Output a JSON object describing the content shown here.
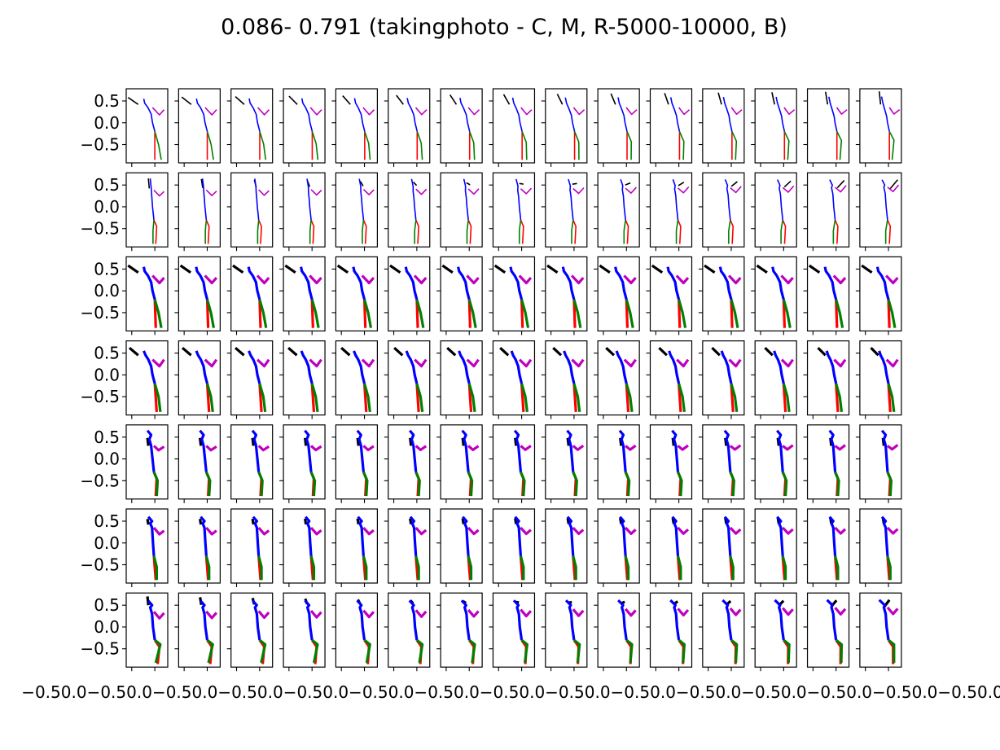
{
  "chart_data": {
    "type": "line",
    "title": "0.086- 0.791 (takingphoto - C, M, R-5000-10000, B)",
    "xlabel": "",
    "ylabel": "",
    "grid": false,
    "legend": "none",
    "layout": {
      "rows": 7,
      "cols": 15
    },
    "xlim": [
      -0.62,
      0.28
    ],
    "ylim": [
      -0.92,
      0.78
    ],
    "y_ticks": [
      0.5,
      0.0,
      -0.5
    ],
    "y_tick_labels": [
      "0.5",
      "0.0",
      "−0.5"
    ],
    "x_ticks": [
      -0.5,
      0.0
    ],
    "x_tick_labels": [
      "−0.5",
      "0.0"
    ],
    "x_axis_text": "−0.50.0−0.50.0−0.50.0−0.50.0−0.50.0−0.50.0−0.50.0−0.50.0−0.50.0−0.50.0−0.50.0−0.50.0−0.50.0−0.50.0−0.50.0",
    "colors": {
      "head": "#000000",
      "spine": "#0000ff",
      "arm": "#bf00bf",
      "leg_right": "#ff0000",
      "leg_left": "#008000"
    },
    "skeleton_rows": [
      {
        "row": 1,
        "weight": 1,
        "start": {
          "head": [
            [
              -0.58,
              0.58
            ],
            [
              -0.36,
              0.42
            ]
          ],
          "spine": [
            [
              -0.24,
              0.55
            ],
            [
              -0.22,
              0.45
            ],
            [
              -0.15,
              0.35
            ],
            [
              -0.08,
              0.2
            ],
            [
              -0.05,
              0.0
            ],
            [
              0.0,
              -0.2
            ]
          ],
          "arm": [
            [
              -0.05,
              0.35
            ],
            [
              0.1,
              0.18
            ],
            [
              0.2,
              0.3
            ]
          ],
          "leg_right": [
            [
              0.0,
              -0.2
            ],
            [
              0.0,
              -0.85
            ]
          ],
          "leg_left": [
            [
              0.0,
              -0.2
            ],
            [
              0.08,
              -0.5
            ],
            [
              0.14,
              -0.85
            ]
          ]
        },
        "end": {
          "head": [
            [
              -0.2,
              0.72
            ],
            [
              -0.17,
              0.42
            ]
          ],
          "spine": [
            [
              -0.15,
              0.6
            ],
            [
              -0.12,
              0.45
            ],
            [
              -0.08,
              0.3
            ],
            [
              -0.04,
              0.15
            ],
            [
              -0.02,
              0.0
            ],
            [
              0.02,
              -0.2
            ]
          ],
          "arm": [
            [
              0.02,
              0.35
            ],
            [
              0.12,
              0.2
            ],
            [
              0.24,
              0.3
            ]
          ],
          "leg_right": [
            [
              0.02,
              -0.2
            ],
            [
              0.02,
              -0.85
            ]
          ],
          "leg_left": [
            [
              0.02,
              -0.2
            ],
            [
              0.12,
              -0.4
            ],
            [
              0.08,
              -0.85
            ]
          ]
        }
      },
      {
        "row": 2,
        "weight": 1,
        "start": {
          "head": [
            [
              -0.14,
              0.65
            ],
            [
              -0.12,
              0.42
            ]
          ],
          "spine": [
            [
              -0.1,
              0.65
            ],
            [
              -0.08,
              0.45
            ],
            [
              -0.07,
              0.3
            ],
            [
              -0.06,
              0.15
            ],
            [
              -0.05,
              0.0
            ],
            [
              -0.02,
              -0.3
            ]
          ],
          "arm": [
            [
              -0.02,
              0.38
            ],
            [
              0.1,
              0.25
            ],
            [
              0.2,
              0.35
            ]
          ],
          "leg_right": [
            [
              -0.02,
              -0.3
            ],
            [
              0.04,
              -0.45
            ],
            [
              0.02,
              -0.85
            ]
          ],
          "leg_left": [
            [
              -0.02,
              -0.3
            ],
            [
              -0.04,
              -0.55
            ],
            [
              -0.04,
              -0.85
            ]
          ]
        },
        "end": {
          "head": [
            [
              0.04,
              0.42
            ],
            [
              0.2,
              0.62
            ]
          ],
          "spine": [
            [
              -0.14,
              0.62
            ],
            [
              -0.08,
              0.5
            ],
            [
              -0.1,
              0.45
            ],
            [
              -0.07,
              0.3
            ],
            [
              -0.05,
              0.0
            ],
            [
              -0.02,
              -0.3
            ]
          ],
          "arm": [
            [
              -0.02,
              0.45
            ],
            [
              0.1,
              0.35
            ],
            [
              0.22,
              0.5
            ]
          ],
          "leg_right": [
            [
              -0.02,
              -0.3
            ],
            [
              0.04,
              -0.45
            ],
            [
              0.02,
              -0.85
            ]
          ],
          "leg_left": [
            [
              -0.02,
              -0.3
            ],
            [
              -0.06,
              -0.55
            ],
            [
              -0.06,
              -0.85
            ]
          ]
        }
      },
      {
        "row": 3,
        "weight": 2,
        "start": {
          "head": [
            [
              -0.58,
              0.58
            ],
            [
              -0.36,
              0.42
            ]
          ],
          "spine": [
            [
              -0.24,
              0.55
            ],
            [
              -0.22,
              0.45
            ],
            [
              -0.15,
              0.35
            ],
            [
              -0.08,
              0.2
            ],
            [
              -0.05,
              0.0
            ],
            [
              0.0,
              -0.2
            ]
          ],
          "arm": [
            [
              -0.05,
              0.35
            ],
            [
              0.1,
              0.18
            ],
            [
              0.2,
              0.3
            ]
          ],
          "leg_right": [
            [
              0.0,
              -0.2
            ],
            [
              0.02,
              -0.85
            ]
          ],
          "leg_left": [
            [
              0.0,
              -0.2
            ],
            [
              0.08,
              -0.5
            ],
            [
              0.14,
              -0.85
            ]
          ]
        },
        "end": {
          "head": [
            [
              -0.58,
              0.58
            ],
            [
              -0.36,
              0.42
            ]
          ],
          "spine": [
            [
              -0.24,
              0.55
            ],
            [
              -0.22,
              0.45
            ],
            [
              -0.15,
              0.35
            ],
            [
              -0.08,
              0.2
            ],
            [
              -0.05,
              0.0
            ],
            [
              0.0,
              -0.2
            ]
          ],
          "arm": [
            [
              -0.05,
              0.35
            ],
            [
              0.1,
              0.18
            ],
            [
              0.2,
              0.3
            ]
          ],
          "leg_right": [
            [
              0.0,
              -0.2
            ],
            [
              0.02,
              -0.85
            ]
          ],
          "leg_left": [
            [
              0.0,
              -0.2
            ],
            [
              0.08,
              -0.5
            ],
            [
              0.14,
              -0.85
            ]
          ]
        }
      },
      {
        "row": 4,
        "weight": 2,
        "start": {
          "head": [
            [
              -0.55,
              0.62
            ],
            [
              -0.36,
              0.45
            ]
          ],
          "spine": [
            [
              -0.24,
              0.55
            ],
            [
              -0.2,
              0.45
            ],
            [
              -0.14,
              0.35
            ],
            [
              -0.08,
              0.2
            ],
            [
              -0.05,
              0.0
            ],
            [
              0.0,
              -0.2
            ]
          ],
          "arm": [
            [
              -0.05,
              0.35
            ],
            [
              0.1,
              0.2
            ],
            [
              0.2,
              0.35
            ]
          ],
          "leg_right": [
            [
              0.0,
              -0.2
            ],
            [
              0.04,
              -0.85
            ]
          ],
          "leg_left": [
            [
              0.0,
              -0.2
            ],
            [
              0.08,
              -0.5
            ],
            [
              0.12,
              -0.85
            ]
          ]
        },
        "end": {
          "head": [
            [
              -0.38,
              0.62
            ],
            [
              -0.22,
              0.45
            ]
          ],
          "spine": [
            [
              -0.2,
              0.55
            ],
            [
              -0.17,
              0.45
            ],
            [
              -0.12,
              0.35
            ],
            [
              -0.07,
              0.2
            ],
            [
              -0.04,
              0.0
            ],
            [
              0.0,
              -0.2
            ]
          ],
          "arm": [
            [
              -0.04,
              0.35
            ],
            [
              0.1,
              0.2
            ],
            [
              0.2,
              0.35
            ]
          ],
          "leg_right": [
            [
              0.0,
              -0.2
            ],
            [
              0.04,
              -0.85
            ]
          ],
          "leg_left": [
            [
              0.0,
              -0.2
            ],
            [
              0.08,
              -0.5
            ],
            [
              0.12,
              -0.85
            ]
          ]
        }
      },
      {
        "row": 5,
        "weight": 2,
        "start": {
          "head": [
            [
              -0.16,
              0.48
            ],
            [
              -0.14,
              0.3
            ]
          ],
          "spine": [
            [
              -0.16,
              0.65
            ],
            [
              -0.08,
              0.55
            ],
            [
              -0.12,
              0.45
            ],
            [
              -0.08,
              0.3
            ],
            [
              -0.05,
              0.0
            ],
            [
              -0.02,
              -0.3
            ]
          ],
          "arm": [
            [
              -0.02,
              0.3
            ],
            [
              0.08,
              0.2
            ],
            [
              0.2,
              0.28
            ]
          ],
          "leg_right": [
            [
              -0.02,
              -0.3
            ],
            [
              0.04,
              -0.45
            ],
            [
              0.02,
              -0.85
            ]
          ],
          "leg_left": [
            [
              -0.02,
              -0.3
            ],
            [
              0.06,
              -0.5
            ],
            [
              0.04,
              -0.85
            ]
          ]
        },
        "end": {
          "head": [
            [
              -0.12,
              0.48
            ],
            [
              -0.1,
              0.3
            ]
          ],
          "spine": [
            [
              -0.14,
              0.65
            ],
            [
              -0.06,
              0.55
            ],
            [
              -0.1,
              0.45
            ],
            [
              -0.06,
              0.3
            ],
            [
              -0.04,
              0.0
            ],
            [
              -0.02,
              -0.3
            ]
          ],
          "arm": [
            [
              -0.02,
              0.3
            ],
            [
              0.08,
              0.22
            ],
            [
              0.2,
              0.32
            ]
          ],
          "leg_right": [
            [
              -0.02,
              -0.3
            ],
            [
              0.04,
              -0.45
            ],
            [
              0.02,
              -0.85
            ]
          ],
          "leg_left": [
            [
              -0.02,
              -0.3
            ],
            [
              0.06,
              -0.5
            ],
            [
              0.04,
              -0.85
            ]
          ]
        }
      },
      {
        "row": 6,
        "weight": 2,
        "start": {
          "head": [
            [
              -0.16,
              0.55
            ],
            [
              -0.14,
              0.42
            ]
          ],
          "spine": [
            [
              -0.14,
              0.6
            ],
            [
              -0.06,
              0.5
            ],
            [
              -0.1,
              0.45
            ],
            [
              -0.06,
              0.35
            ],
            [
              -0.04,
              0.0
            ],
            [
              -0.02,
              -0.3
            ]
          ],
          "arm": [
            [
              -0.02,
              0.35
            ],
            [
              0.1,
              0.2
            ],
            [
              0.2,
              0.28
            ]
          ],
          "leg_right": [
            [
              -0.02,
              -0.3
            ],
            [
              0.02,
              -0.85
            ]
          ],
          "leg_left": [
            [
              -0.02,
              -0.3
            ],
            [
              0.04,
              -0.55
            ],
            [
              0.04,
              -0.85
            ]
          ]
        },
        "end": {
          "head": [
            [
              -0.12,
              0.58
            ],
            [
              -0.1,
              0.45
            ]
          ],
          "spine": [
            [
              -0.14,
              0.6
            ],
            [
              -0.06,
              0.5
            ],
            [
              -0.1,
              0.45
            ],
            [
              -0.06,
              0.35
            ],
            [
              -0.04,
              0.0
            ],
            [
              -0.02,
              -0.3
            ]
          ],
          "arm": [
            [
              -0.02,
              0.35
            ],
            [
              0.1,
              0.22
            ],
            [
              0.2,
              0.32
            ]
          ],
          "leg_right": [
            [
              -0.02,
              -0.3
            ],
            [
              0.02,
              -0.85
            ]
          ],
          "leg_left": [
            [
              -0.02,
              -0.3
            ],
            [
              0.04,
              -0.55
            ],
            [
              0.04,
              -0.85
            ]
          ]
        }
      },
      {
        "row": 7,
        "weight": 2,
        "start": {
          "head": [
            [
              -0.16,
              0.7
            ],
            [
              -0.14,
              0.5
            ]
          ],
          "spine": [
            [
              -0.14,
              0.6
            ],
            [
              -0.06,
              0.5
            ],
            [
              -0.1,
              0.45
            ],
            [
              -0.06,
              0.3
            ],
            [
              -0.04,
              0.0
            ],
            [
              0.0,
              -0.3
            ]
          ],
          "arm": [
            [
              -0.02,
              0.35
            ],
            [
              0.1,
              0.2
            ],
            [
              0.2,
              0.32
            ]
          ],
          "leg_right": [
            [
              0.0,
              -0.3
            ],
            [
              0.1,
              -0.45
            ],
            [
              0.06,
              -0.85
            ]
          ],
          "leg_left": [
            [
              0.0,
              -0.3
            ],
            [
              0.12,
              -0.4
            ],
            [
              0.02,
              -0.82
            ]
          ]
        },
        "end": {
          "head": [
            [
              -0.1,
              0.45
            ],
            [
              0.02,
              0.62
            ]
          ],
          "spine": [
            [
              -0.2,
              0.62
            ],
            [
              -0.08,
              0.5
            ],
            [
              -0.1,
              0.45
            ],
            [
              -0.06,
              0.3
            ],
            [
              -0.04,
              0.0
            ],
            [
              0.0,
              -0.3
            ]
          ],
          "arm": [
            [
              -0.02,
              0.45
            ],
            [
              0.1,
              0.3
            ],
            [
              0.2,
              0.42
            ]
          ],
          "leg_right": [
            [
              0.0,
              -0.3
            ],
            [
              0.1,
              -0.45
            ],
            [
              0.1,
              -0.85
            ]
          ],
          "leg_left": [
            [
              0.0,
              -0.3
            ],
            [
              0.12,
              -0.4
            ],
            [
              0.12,
              -0.82
            ]
          ]
        }
      }
    ]
  }
}
